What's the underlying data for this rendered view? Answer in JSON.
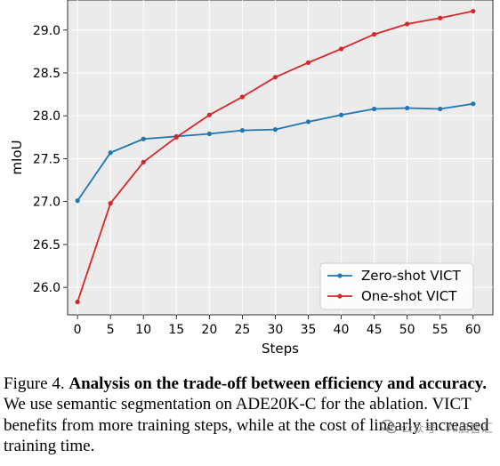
{
  "chart_data": {
    "type": "line",
    "title": "",
    "xlabel": "Steps",
    "ylabel": "mIoU",
    "x": [
      0,
      5,
      10,
      15,
      20,
      25,
      30,
      35,
      40,
      45,
      50,
      55,
      60
    ],
    "x_ticks": [
      "0",
      "5",
      "10",
      "15",
      "20",
      "25",
      "30",
      "35",
      "40",
      "45",
      "50",
      "55",
      "60"
    ],
    "y_ticks": [
      "26.0",
      "26.5",
      "27.0",
      "27.5",
      "28.0",
      "28.5",
      "29.0"
    ],
    "xlim": [
      -1.5,
      63
    ],
    "ylim": [
      25.68,
      29.35
    ],
    "grid": true,
    "legend_position": "lower-right",
    "series": [
      {
        "name": "Zero-shot VICT",
        "color": "#1f77b4",
        "values": [
          27.01,
          27.57,
          27.73,
          27.76,
          27.79,
          27.83,
          27.84,
          27.93,
          28.01,
          28.08,
          28.09,
          28.08,
          28.14
        ]
      },
      {
        "name": "One-shot VICT",
        "color": "#d62728",
        "values": [
          25.83,
          26.98,
          27.46,
          27.75,
          28.01,
          28.22,
          28.45,
          28.62,
          28.78,
          28.95,
          29.07,
          29.14,
          29.22
        ]
      }
    ]
  },
  "caption": {
    "label": "Figure 4.",
    "bold": "Analysis on the trade-off between efficiency and accuracy.",
    "text": "We use semantic segmentation on ADE20K-C for the ablation. VICT benefits from more training steps, while at the cost of linearly increased training time."
  },
  "watermark": {
    "text": "公众号 · AI启智汇"
  }
}
